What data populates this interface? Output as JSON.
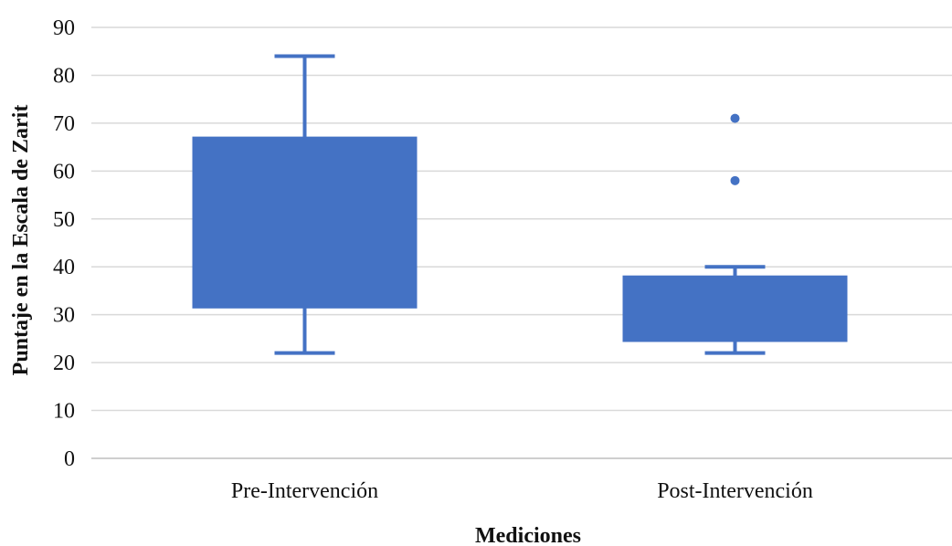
{
  "chart_data": {
    "type": "box",
    "categories": [
      "Pre-Intervención",
      "Post-Intervención"
    ],
    "boxes": [
      {
        "category": "Pre-Intervención",
        "min": 22,
        "q1": 31.5,
        "q3": 67,
        "max": 84,
        "outliers": []
      },
      {
        "category": "Post-Intervención",
        "min": 22,
        "q1": 24.5,
        "q3": 38,
        "max": 40,
        "outliers": [
          58,
          71
        ]
      }
    ],
    "xlabel": "Mediciones",
    "ylabel": "Puntaje en la Escala de Zarit",
    "ylim": [
      0,
      90
    ],
    "yticks": [
      0,
      10,
      20,
      30,
      40,
      50,
      60,
      70,
      80,
      90
    ],
    "grid": true,
    "colors": {
      "box": "#4472c4",
      "grid": "#d9d9d9",
      "text": "#111111"
    }
  }
}
